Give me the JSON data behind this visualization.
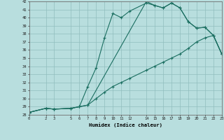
{
  "xlabel": "Humidex (Indice chaleur)",
  "background_color": "#b8dede",
  "line_color": "#1a6e60",
  "grid_color": "#90bebe",
  "xlim": [
    0,
    23
  ],
  "ylim": [
    28,
    42
  ],
  "xticks": [
    0,
    2,
    3,
    5,
    6,
    7,
    8,
    9,
    10,
    11,
    12,
    14,
    15,
    16,
    17,
    18,
    19,
    20,
    21,
    22,
    23
  ],
  "yticks": [
    28,
    29,
    30,
    31,
    32,
    33,
    34,
    35,
    36,
    37,
    38,
    39,
    40,
    41,
    42
  ],
  "line1_x": [
    0,
    2,
    3,
    5,
    6,
    7,
    8,
    9,
    10,
    11,
    12,
    14,
    15,
    16,
    17,
    18,
    19,
    20,
    21,
    22,
    23
  ],
  "line1_y": [
    28.3,
    28.8,
    28.7,
    28.8,
    29.0,
    29.2,
    30.0,
    30.8,
    31.5,
    32.0,
    32.5,
    33.5,
    34.0,
    34.5,
    35.0,
    35.5,
    36.2,
    37.0,
    37.5,
    37.8,
    35.5
  ],
  "line2_x": [
    0,
    2,
    3,
    5,
    6,
    7,
    8,
    9,
    10,
    11,
    12,
    14,
    15,
    16,
    17,
    18,
    19,
    20,
    21,
    22,
    23
  ],
  "line2_y": [
    28.3,
    28.8,
    28.7,
    28.8,
    29.0,
    31.5,
    33.8,
    37.5,
    40.5,
    40.0,
    40.8,
    41.8,
    41.5,
    41.2,
    41.8,
    41.2,
    39.5,
    38.7,
    38.8,
    37.8,
    35.5
  ],
  "line3_x": [
    0,
    2,
    3,
    5,
    6,
    7,
    14,
    15,
    16,
    17,
    18,
    19,
    20,
    21,
    22,
    23
  ],
  "line3_y": [
    28.3,
    28.8,
    28.7,
    28.8,
    29.0,
    29.2,
    42.0,
    41.5,
    41.2,
    41.8,
    41.2,
    39.5,
    38.7,
    38.8,
    37.8,
    35.5
  ]
}
